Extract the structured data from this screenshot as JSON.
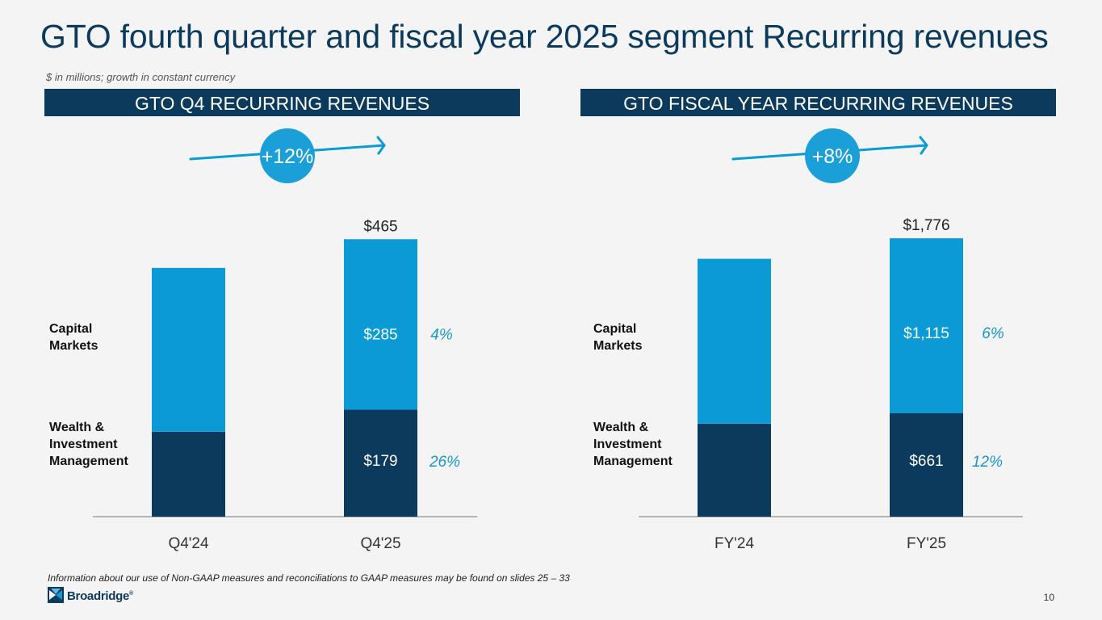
{
  "title": "GTO fourth quarter and fiscal year 2025 segment Recurring revenues",
  "subtitle": "$ in millions; growth in constant currency",
  "footnote": "Information about our use of Non-GAAP measures and reconciliations to GAAP measures may be found on slides 25 – 33",
  "page_number": "10",
  "logo": {
    "text": "Broadridge",
    "registered": "®"
  },
  "colors": {
    "navy": "#0b3a5c",
    "blue": "#0a9bd6",
    "growth": "#1a95c9",
    "axis": "#777777",
    "background": "#f4f4f4"
  },
  "chart_data": [
    {
      "type": "bar",
      "stacked": true,
      "title": "GTO Q4 RECURRING REVENUES",
      "categories": [
        "Q4'24",
        "Q4'25"
      ],
      "series": [
        {
          "name": "Wealth & Investment Management",
          "label": "Wealth &\nInvestment\nManagement",
          "values": [
            142,
            179
          ],
          "data_labels": [
            "",
            "$179"
          ],
          "growth": "26%"
        },
        {
          "name": "Capital Markets",
          "label": "Capital\nMarkets",
          "values": [
            274,
            285
          ],
          "data_labels": [
            "",
            "$285"
          ],
          "growth": "4%"
        }
      ],
      "totals": [
        416,
        465
      ],
      "total_labels": [
        "",
        "$465"
      ],
      "overall_growth": "+12%",
      "ylim": [
        0,
        540
      ]
    },
    {
      "type": "bar",
      "stacked": true,
      "title": "GTO FISCAL YEAR RECURRING REVENUES",
      "categories": [
        "FY'24",
        "FY'25"
      ],
      "series": [
        {
          "name": "Wealth & Investment Management",
          "label": "Wealth &\nInvestment\nManagement",
          "values": [
            593,
            661
          ],
          "data_labels": [
            "",
            "$661"
          ],
          "growth": "12%"
        },
        {
          "name": "Capital Markets",
          "label": "Capital\nMarkets",
          "values": [
            1052,
            1115
          ],
          "data_labels": [
            "",
            "$1,115"
          ],
          "growth": "6%"
        }
      ],
      "totals": [
        1645,
        1776
      ],
      "total_labels": [
        "",
        "$1,776"
      ],
      "overall_growth": "+8%",
      "ylim": [
        0,
        2060
      ]
    }
  ]
}
